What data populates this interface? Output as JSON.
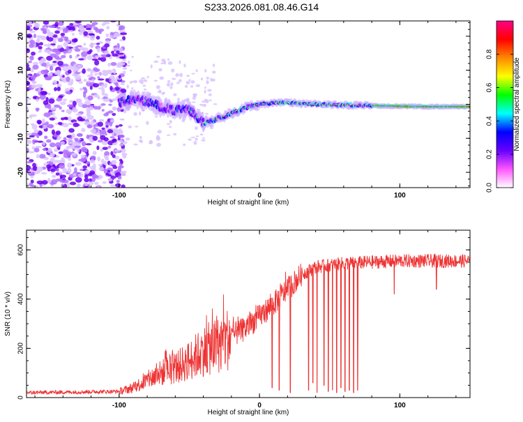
{
  "page_title": "S233.2026.081.08.46.G14",
  "colors": {
    "snr_line": "#ee3333",
    "axis": "#000000"
  },
  "chart_data": [
    {
      "type": "heatmap",
      "xlabel": "Height of straight line (km)",
      "ylabel": "Frequency (Hz)",
      "xlim": [
        -166,
        150
      ],
      "ylim": [
        -24.5,
        24.5
      ],
      "xticks": [
        -100,
        0,
        100
      ],
      "yticks": [
        -20,
        -10,
        0,
        10,
        20
      ],
      "colorbar": {
        "label": "Normalized spectral amplitude",
        "range": [
          0,
          1
        ],
        "ticks": [
          0.0,
          0.2,
          0.4,
          0.6,
          0.8
        ],
        "colormap": [
          "#ffffff",
          "#ff55ff",
          "#6600ff",
          "#0000ff",
          "#00ffff",
          "#00ff00",
          "#ffff00",
          "#ff8800",
          "#ff0000",
          "#ff0088"
        ]
      },
      "ridge": {
        "x": [
          -100,
          -90,
          -80,
          -70,
          -60,
          -50,
          -45,
          -40,
          -35,
          -30,
          -25,
          -20,
          -10,
          0,
          10,
          20,
          30,
          40,
          60,
          80,
          100,
          120,
          150
        ],
        "y": [
          0.5,
          1.5,
          0.8,
          -0.8,
          -1.8,
          -1.5,
          -3.5,
          -5.5,
          -5.0,
          -4.2,
          -3.5,
          -2.5,
          -1.0,
          0.0,
          0.4,
          0.5,
          0.2,
          0.0,
          -0.2,
          -0.4,
          -0.6,
          -0.7,
          -0.7
        ]
      }
    },
    {
      "type": "line",
      "xlabel": "Height of straight line (km)",
      "ylabel": "SNR (10 * v/v)",
      "xlim": [
        -166,
        150
      ],
      "ylim": [
        0,
        680
      ],
      "xticks": [
        -100,
        0,
        100
      ],
      "yticks": [
        0,
        200,
        400,
        600
      ],
      "trend": {
        "x": [
          -166,
          -100,
          -90,
          -80,
          -70,
          -60,
          -50,
          -40,
          -30,
          -20,
          -10,
          0,
          10,
          20,
          30,
          40,
          60,
          80,
          100,
          150
        ],
        "y": [
          20,
          25,
          40,
          70,
          100,
          120,
          150,
          190,
          210,
          250,
          280,
          330,
          380,
          440,
          500,
          530,
          545,
          550,
          555,
          555
        ]
      },
      "dropouts": [
        {
          "x": 9,
          "y": 40
        },
        {
          "x": 14,
          "y": 30
        },
        {
          "x": 22,
          "y": 20
        },
        {
          "x": 35,
          "y": 30
        },
        {
          "x": 38,
          "y": 60
        },
        {
          "x": 41,
          "y": 20
        },
        {
          "x": 46,
          "y": 50
        },
        {
          "x": 49,
          "y": 25
        },
        {
          "x": 52,
          "y": 30
        },
        {
          "x": 55,
          "y": 20
        },
        {
          "x": 58,
          "y": 40
        },
        {
          "x": 61,
          "y": 25
        },
        {
          "x": 64,
          "y": 30
        },
        {
          "x": 67,
          "y": 20
        },
        {
          "x": 70,
          "y": 30
        },
        {
          "x": 96,
          "y": 420
        },
        {
          "x": 126,
          "y": 440
        }
      ]
    }
  ]
}
